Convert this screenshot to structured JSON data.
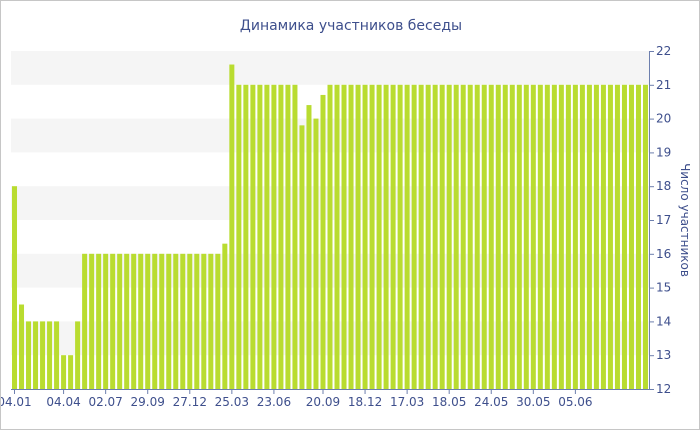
{
  "chart_data": {
    "type": "bar",
    "title": "Динамика участников беседы",
    "xlabel": "",
    "ylabel": "Число участников",
    "ylim": [
      12,
      22
    ],
    "yticks": [
      12,
      13,
      14,
      15,
      16,
      17,
      18,
      19,
      20,
      21,
      22
    ],
    "y_axis_side": "right",
    "grid": "alternating horizontal bands",
    "bar_color": "#b9dc30",
    "band_color": "#f5f5f5",
    "text_color": "#3e4f8c",
    "x_tick_labels": [
      "04.01",
      "04.04",
      "02.07",
      "29.09",
      "27.12",
      "25.03",
      "23.06",
      "20.09",
      "18.12",
      "17.03",
      "18.05",
      "24.05",
      "30.05",
      "05.06"
    ],
    "x_tick_bar_index": [
      0,
      7,
      13,
      19,
      25,
      31,
      37,
      44,
      50,
      56,
      62,
      68,
      74,
      80
    ],
    "values": [
      18,
      14.5,
      14,
      14,
      14,
      14,
      14,
      13,
      13,
      14,
      16,
      16,
      16,
      16,
      16,
      16,
      16,
      16,
      16,
      16,
      16,
      16,
      16,
      16,
      16,
      16,
      16,
      16,
      16,
      16,
      16.3,
      21.6,
      21,
      21,
      21,
      21,
      21,
      21,
      21,
      21,
      21,
      19.8,
      20.4,
      20,
      20.7,
      21,
      21,
      21,
      21,
      21,
      21,
      21,
      21,
      21,
      21,
      21,
      21,
      21,
      21,
      21,
      21,
      21,
      21,
      21,
      21,
      21,
      21,
      21,
      21,
      21,
      21,
      21,
      21,
      21,
      21,
      21,
      21,
      21,
      21,
      21,
      21,
      21,
      21,
      21,
      21,
      21,
      21,
      21,
      21,
      21,
      21
    ]
  }
}
